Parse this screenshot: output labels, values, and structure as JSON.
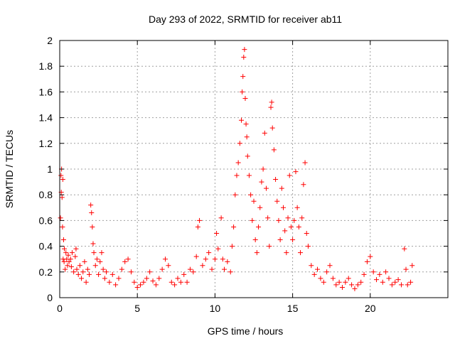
{
  "chart_data": {
    "type": "scatter",
    "title": "Day 293 of 2022, SRMTID for receiver ab11",
    "xlabel": "GPS time / hours",
    "ylabel": "SRMTID / TECUs",
    "xlim": [
      0,
      25
    ],
    "ylim": [
      0,
      2
    ],
    "xticks": [
      "0",
      "5",
      "10",
      "15",
      "20"
    ],
    "yticks": [
      "0",
      "0.2",
      "0.4",
      "0.6",
      "0.8",
      "1",
      "1.2",
      "1.4",
      "1.6",
      "1.8",
      "2"
    ],
    "grid": true,
    "marker": "+",
    "marker_color": "#ff0000",
    "series": [
      {
        "name": "SRMTID",
        "points": [
          [
            0.05,
            0.62
          ],
          [
            0.08,
            0.95
          ],
          [
            0.1,
            0.82
          ],
          [
            0.12,
            1.0
          ],
          [
            0.15,
            0.78
          ],
          [
            0.18,
            0.55
          ],
          [
            0.2,
            0.92
          ],
          [
            0.22,
            0.3
          ],
          [
            0.25,
            0.45
          ],
          [
            0.28,
            0.28
          ],
          [
            0.3,
            0.38
          ],
          [
            0.35,
            0.22
          ],
          [
            0.4,
            0.35
          ],
          [
            0.45,
            0.3
          ],
          [
            0.5,
            0.25
          ],
          [
            0.55,
            0.33
          ],
          [
            0.6,
            0.28
          ],
          [
            0.7,
            0.3
          ],
          [
            0.75,
            0.24
          ],
          [
            0.8,
            0.35
          ],
          [
            0.9,
            0.2
          ],
          [
            1.0,
            0.32
          ],
          [
            1.05,
            0.38
          ],
          [
            1.1,
            0.22
          ],
          [
            1.2,
            0.18
          ],
          [
            1.3,
            0.25
          ],
          [
            1.4,
            0.15
          ],
          [
            1.5,
            0.2
          ],
          [
            1.6,
            0.28
          ],
          [
            1.7,
            0.12
          ],
          [
            1.8,
            0.22
          ],
          [
            1.9,
            0.18
          ],
          [
            2.0,
            0.72
          ],
          [
            2.05,
            0.66
          ],
          [
            2.1,
            0.55
          ],
          [
            2.15,
            0.42
          ],
          [
            2.2,
            0.35
          ],
          [
            2.3,
            0.25
          ],
          [
            2.4,
            0.3
          ],
          [
            2.5,
            0.18
          ],
          [
            2.6,
            0.28
          ],
          [
            2.7,
            0.35
          ],
          [
            2.8,
            0.22
          ],
          [
            2.9,
            0.15
          ],
          [
            3.0,
            0.2
          ],
          [
            3.2,
            0.12
          ],
          [
            3.4,
            0.18
          ],
          [
            3.6,
            0.1
          ],
          [
            3.8,
            0.15
          ],
          [
            4.0,
            0.22
          ],
          [
            4.2,
            0.28
          ],
          [
            4.4,
            0.3
          ],
          [
            4.6,
            0.2
          ],
          [
            4.8,
            0.12
          ],
          [
            5.0,
            0.08
          ],
          [
            5.2,
            0.1
          ],
          [
            5.4,
            0.12
          ],
          [
            5.6,
            0.15
          ],
          [
            5.8,
            0.2
          ],
          [
            6.0,
            0.13
          ],
          [
            6.2,
            0.1
          ],
          [
            6.4,
            0.15
          ],
          [
            6.6,
            0.22
          ],
          [
            6.8,
            0.3
          ],
          [
            7.0,
            0.25
          ],
          [
            7.2,
            0.12
          ],
          [
            7.4,
            0.1
          ],
          [
            7.6,
            0.15
          ],
          [
            7.8,
            0.12
          ],
          [
            8.0,
            0.18
          ],
          [
            8.2,
            0.12
          ],
          [
            8.4,
            0.22
          ],
          [
            8.6,
            0.2
          ],
          [
            8.8,
            0.32
          ],
          [
            8.9,
            0.55
          ],
          [
            9.0,
            0.6
          ],
          [
            9.2,
            0.25
          ],
          [
            9.4,
            0.3
          ],
          [
            9.6,
            0.35
          ],
          [
            9.8,
            0.22
          ],
          [
            10.0,
            0.3
          ],
          [
            10.1,
            0.5
          ],
          [
            10.2,
            0.38
          ],
          [
            10.4,
            0.62
          ],
          [
            10.5,
            0.3
          ],
          [
            10.6,
            0.22
          ],
          [
            10.8,
            0.28
          ],
          [
            11.0,
            0.2
          ],
          [
            11.1,
            0.4
          ],
          [
            11.2,
            0.55
          ],
          [
            11.3,
            0.8
          ],
          [
            11.4,
            0.95
          ],
          [
            11.5,
            1.05
          ],
          [
            11.6,
            1.2
          ],
          [
            11.7,
            1.38
          ],
          [
            11.75,
            1.6
          ],
          [
            11.8,
            1.72
          ],
          [
            11.85,
            1.87
          ],
          [
            11.9,
            1.93
          ],
          [
            11.95,
            1.55
          ],
          [
            12.0,
            1.35
          ],
          [
            12.05,
            1.25
          ],
          [
            12.1,
            1.1
          ],
          [
            12.2,
            0.95
          ],
          [
            12.3,
            0.8
          ],
          [
            12.4,
            0.6
          ],
          [
            12.5,
            0.75
          ],
          [
            12.6,
            0.45
          ],
          [
            12.7,
            0.35
          ],
          [
            12.8,
            0.55
          ],
          [
            12.9,
            0.7
          ],
          [
            13.0,
            0.9
          ],
          [
            13.1,
            1.0
          ],
          [
            13.2,
            1.28
          ],
          [
            13.3,
            0.85
          ],
          [
            13.4,
            0.62
          ],
          [
            13.5,
            0.4
          ],
          [
            13.6,
            1.48
          ],
          [
            13.65,
            1.52
          ],
          [
            13.7,
            1.32
          ],
          [
            13.8,
            1.15
          ],
          [
            13.9,
            0.92
          ],
          [
            14.0,
            0.75
          ],
          [
            14.1,
            0.6
          ],
          [
            14.2,
            0.45
          ],
          [
            14.3,
            0.85
          ],
          [
            14.4,
            0.7
          ],
          [
            14.5,
            0.52
          ],
          [
            14.6,
            0.35
          ],
          [
            14.7,
            0.62
          ],
          [
            14.8,
            0.95
          ],
          [
            14.9,
            0.55
          ],
          [
            15.0,
            0.45
          ],
          [
            15.1,
            0.6
          ],
          [
            15.2,
            0.98
          ],
          [
            15.3,
            0.7
          ],
          [
            15.4,
            0.55
          ],
          [
            15.5,
            0.35
          ],
          [
            15.6,
            0.62
          ],
          [
            15.7,
            0.88
          ],
          [
            15.8,
            1.05
          ],
          [
            15.9,
            0.5
          ],
          [
            16.0,
            0.4
          ],
          [
            16.2,
            0.25
          ],
          [
            16.4,
            0.18
          ],
          [
            16.6,
            0.22
          ],
          [
            16.8,
            0.15
          ],
          [
            17.0,
            0.12
          ],
          [
            17.2,
            0.2
          ],
          [
            17.4,
            0.25
          ],
          [
            17.6,
            0.15
          ],
          [
            17.8,
            0.1
          ],
          [
            18.0,
            0.12
          ],
          [
            18.2,
            0.08
          ],
          [
            18.4,
            0.12
          ],
          [
            18.6,
            0.15
          ],
          [
            18.8,
            0.1
          ],
          [
            19.0,
            0.07
          ],
          [
            19.2,
            0.1
          ],
          [
            19.4,
            0.12
          ],
          [
            19.6,
            0.18
          ],
          [
            19.8,
            0.28
          ],
          [
            20.0,
            0.32
          ],
          [
            20.2,
            0.2
          ],
          [
            20.4,
            0.14
          ],
          [
            20.6,
            0.18
          ],
          [
            20.8,
            0.12
          ],
          [
            21.0,
            0.2
          ],
          [
            21.2,
            0.15
          ],
          [
            21.4,
            0.1
          ],
          [
            21.6,
            0.12
          ],
          [
            21.8,
            0.14
          ],
          [
            22.0,
            0.1
          ],
          [
            22.2,
            0.38
          ],
          [
            22.3,
            0.22
          ],
          [
            22.4,
            0.1
          ],
          [
            22.6,
            0.12
          ],
          [
            22.7,
            0.25
          ]
        ]
      }
    ]
  }
}
